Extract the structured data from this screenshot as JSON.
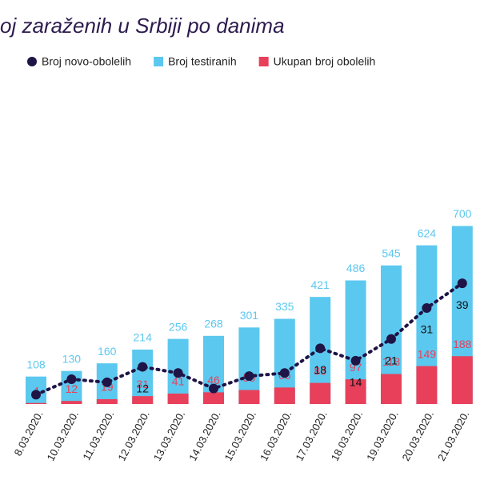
{
  "chart_data": {
    "type": "bar_line",
    "title": "oj zaraženih u Srbiji po danima",
    "categories": [
      "8.03.2020.",
      "10.03.2020.",
      "11.03.2020.",
      "12.03.2020.",
      "13.03.2020.",
      "14.03.2020.",
      "15.03.2020.",
      "16.03.2020.",
      "17.03.2020.",
      "18.03.2020.",
      "19.03.2020.",
      "20.03.2020.",
      "21.03.2020."
    ],
    "series": [
      {
        "name": "Broj novo-obolelih",
        "type": "line",
        "axis": "y2",
        "color": "#1f1446",
        "values": [
          3,
          8,
          7,
          12,
          10,
          5,
          9,
          10,
          18,
          14,
          21,
          31,
          39
        ],
        "value_labels": [
          null,
          null,
          null,
          "12",
          null,
          null,
          null,
          null,
          "18",
          "14",
          "21",
          "31",
          "39"
        ]
      },
      {
        "name": "Broj testiranih",
        "type": "bar",
        "color": "#5bc8ef",
        "values": [
          108,
          130,
          160,
          214,
          256,
          268,
          301,
          335,
          421,
          486,
          545,
          624,
          700
        ]
      },
      {
        "name": "Ukupan broj obolelih",
        "type": "bar",
        "color": "#e8405a",
        "values": [
          4,
          12,
          19,
          31,
          41,
          46,
          55,
          65,
          83,
          97,
          118,
          149,
          188
        ]
      }
    ],
    "ylim": [
      0,
      1400
    ],
    "y2lim": [
      0,
      115
    ]
  }
}
